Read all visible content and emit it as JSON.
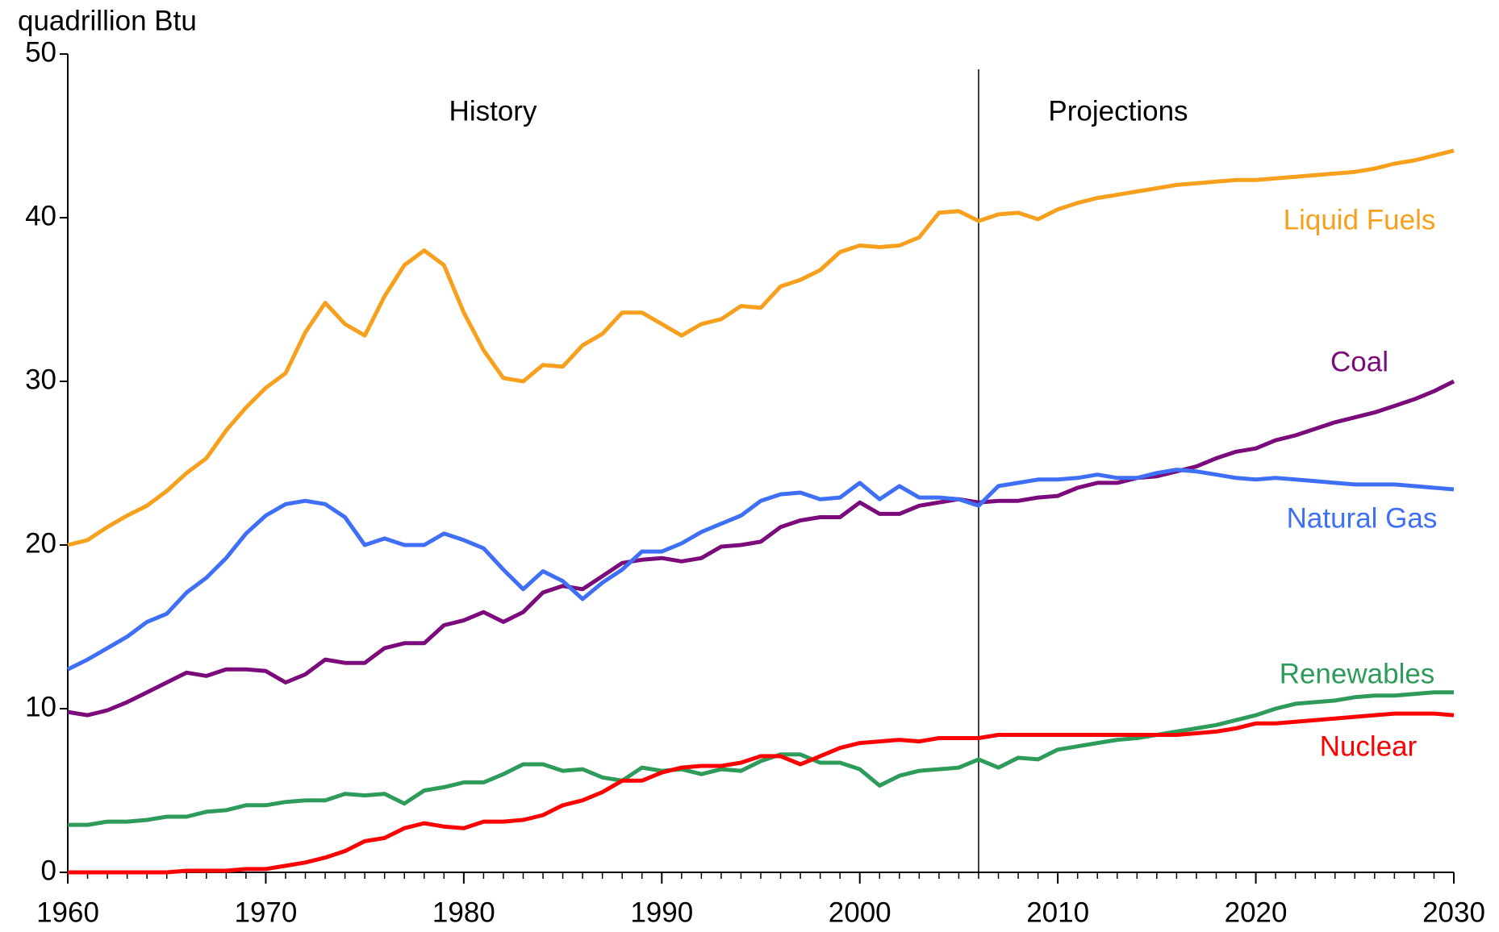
{
  "chart_data": {
    "type": "line",
    "y_axis_label": "quadrillion Btu",
    "xlim": [
      1960,
      2030
    ],
    "xticks": [
      1960,
      1970,
      1980,
      1990,
      2000,
      2010,
      2020,
      2030
    ],
    "ylim": [
      0,
      50
    ],
    "yticks": [
      0,
      10,
      20,
      30,
      40,
      50
    ],
    "annotations": [
      {
        "text": "History"
      },
      {
        "text": "Projections"
      }
    ],
    "divider_x": 2006,
    "x": [
      1960,
      1961,
      1962,
      1963,
      1964,
      1965,
      1966,
      1967,
      1968,
      1969,
      1970,
      1971,
      1972,
      1973,
      1974,
      1975,
      1976,
      1977,
      1978,
      1979,
      1980,
      1981,
      1982,
      1983,
      1984,
      1985,
      1986,
      1987,
      1988,
      1989,
      1990,
      1991,
      1992,
      1993,
      1994,
      1995,
      1996,
      1997,
      1998,
      1999,
      2000,
      2001,
      2002,
      2003,
      2004,
      2005,
      2006,
      2007,
      2008,
      2009,
      2010,
      2011,
      2012,
      2013,
      2014,
      2015,
      2016,
      2017,
      2018,
      2019,
      2020,
      2021,
      2022,
      2023,
      2024,
      2025,
      2026,
      2027,
      2028,
      2029,
      2030
    ],
    "series": [
      {
        "name": "Liquid Fuels",
        "color": "#f7a01d",
        "values": [
          20,
          20.3,
          21.1,
          21.8,
          22.4,
          23.3,
          24.4,
          25.3,
          27,
          28.4,
          29.6,
          30.5,
          33,
          34.8,
          33.5,
          32.8,
          35.2,
          37.1,
          38,
          37.1,
          34.2,
          31.9,
          30.2,
          30,
          31,
          30.9,
          32.2,
          32.9,
          34.2,
          34.2,
          33.5,
          32.8,
          33.5,
          33.8,
          34.6,
          34.5,
          35.8,
          36.2,
          36.8,
          37.9,
          38.3,
          38.2,
          38.3,
          38.8,
          40.3,
          40.4,
          39.8,
          40.2,
          40.3,
          39.9,
          40.5,
          40.9,
          41.2,
          41.4,
          41.6,
          41.8,
          42,
          42.1,
          42.2,
          42.3,
          42.3,
          42.4,
          42.5,
          42.6,
          42.7,
          42.8,
          43,
          43.3,
          43.5,
          43.8,
          44.1
        ]
      },
      {
        "name": "Coal",
        "color": "#7b0a7b",
        "values": [
          9.8,
          9.6,
          9.9,
          10.4,
          11,
          11.6,
          12.2,
          12,
          12.4,
          12.4,
          12.3,
          11.6,
          12.1,
          13,
          12.8,
          12.8,
          13.7,
          14,
          14,
          15.1,
          15.4,
          15.9,
          15.3,
          15.9,
          17.1,
          17.5,
          17.3,
          18.1,
          18.9,
          19.1,
          19.2,
          19,
          19.2,
          19.9,
          20,
          20.2,
          21.1,
          21.5,
          21.7,
          21.7,
          22.6,
          21.9,
          21.9,
          22.4,
          22.6,
          22.8,
          22.6,
          22.7,
          22.7,
          22.9,
          23,
          23.5,
          23.8,
          23.8,
          24.1,
          24.2,
          24.5,
          24.8,
          25.3,
          25.7,
          25.9,
          26.4,
          26.7,
          27.1,
          27.5,
          27.8,
          28.1,
          28.5,
          28.9,
          29.4,
          30
        ]
      },
      {
        "name": "Natural Gas",
        "color": "#3f6ff5",
        "values": [
          12.4,
          13,
          13.7,
          14.4,
          15.3,
          15.8,
          17.1,
          18,
          19.2,
          20.7,
          21.8,
          22.5,
          22.7,
          22.5,
          21.7,
          20,
          20.4,
          20,
          20,
          20.7,
          20.3,
          19.8,
          18.5,
          17.3,
          18.4,
          17.8,
          16.7,
          17.7,
          18.5,
          19.6,
          19.6,
          20.1,
          20.8,
          21.3,
          21.8,
          22.7,
          23.1,
          23.2,
          22.8,
          22.9,
          23.8,
          22.8,
          23.6,
          22.9,
          22.9,
          22.8,
          22.4,
          23.6,
          23.8,
          24,
          24,
          24.1,
          24.3,
          24.1,
          24.1,
          24.4,
          24.6,
          24.5,
          24.3,
          24.1,
          24,
          24.1,
          24,
          23.9,
          23.8,
          23.7,
          23.7,
          23.7,
          23.6,
          23.5,
          23.4
        ]
      },
      {
        "name": "Renewables",
        "color": "#2e9b5a",
        "values": [
          2.9,
          2.9,
          3.1,
          3.1,
          3.2,
          3.4,
          3.4,
          3.7,
          3.8,
          4.1,
          4.1,
          4.3,
          4.4,
          4.4,
          4.8,
          4.7,
          4.8,
          4.2,
          5,
          5.2,
          5.5,
          5.5,
          6,
          6.6,
          6.6,
          6.2,
          6.3,
          5.8,
          5.6,
          6.4,
          6.2,
          6.3,
          6,
          6.3,
          6.2,
          6.8,
          7.2,
          7.2,
          6.7,
          6.7,
          6.3,
          5.3,
          5.9,
          6.2,
          6.3,
          6.4,
          6.9,
          6.4,
          7,
          6.9,
          7.5,
          7.7,
          7.9,
          8.1,
          8.2,
          8.4,
          8.6,
          8.8,
          9,
          9.3,
          9.6,
          10,
          10.3,
          10.4,
          10.5,
          10.7,
          10.8,
          10.8,
          10.9,
          11,
          11
        ]
      },
      {
        "name": "Nuclear",
        "color": "#ff0000",
        "values": [
          0,
          0,
          0,
          0,
          0,
          0,
          0.1,
          0.1,
          0.1,
          0.2,
          0.2,
          0.4,
          0.6,
          0.9,
          1.3,
          1.9,
          2.1,
          2.7,
          3,
          2.8,
          2.7,
          3.1,
          3.1,
          3.2,
          3.5,
          4.1,
          4.4,
          4.9,
          5.6,
          5.6,
          6.1,
          6.4,
          6.5,
          6.5,
          6.7,
          7.1,
          7.1,
          6.6,
          7.1,
          7.6,
          7.9,
          8,
          8.1,
          8,
          8.2,
          8.2,
          8.2,
          8.4,
          8.4,
          8.4,
          8.4,
          8.4,
          8.4,
          8.4,
          8.4,
          8.4,
          8.4,
          8.5,
          8.6,
          8.8,
          9.1,
          9.1,
          9.2,
          9.3,
          9.4,
          9.5,
          9.6,
          9.7,
          9.7,
          9.7,
          9.6
        ]
      }
    ]
  }
}
